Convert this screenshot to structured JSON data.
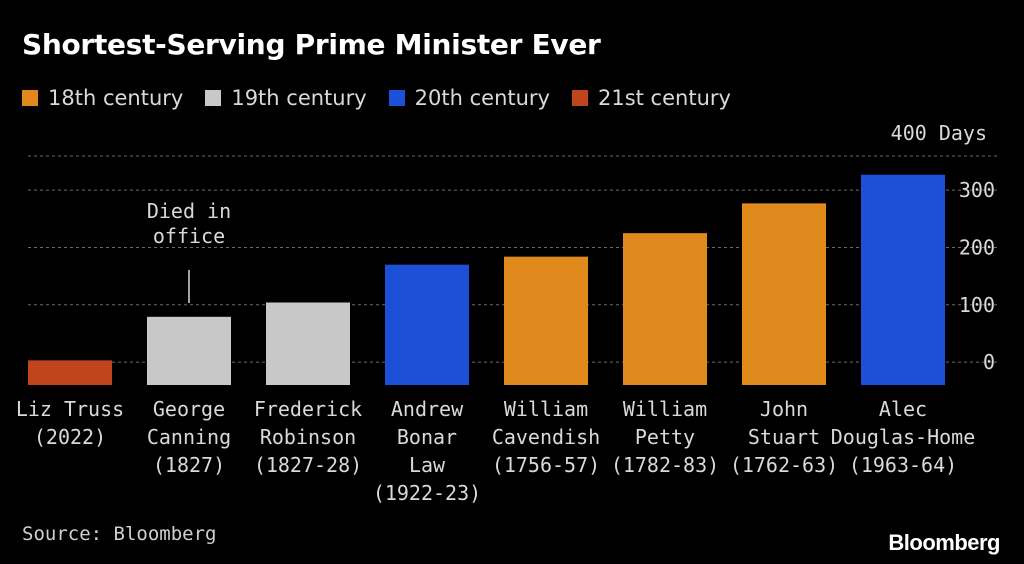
{
  "colors": {
    "background": "#000000",
    "c18": "#e08a1e",
    "c19": "#c8c8c8",
    "c20": "#1d4fd8",
    "c21": "#c0441c",
    "grid": "#6a6a6a",
    "text": "#d9d9d9"
  },
  "footer": {
    "source": "Source: Bloomberg",
    "logo": "Bloomberg"
  },
  "chart_data": {
    "type": "bar",
    "title": "Shortest-Serving Prime Minister Ever",
    "unit_label": "400 Days",
    "ylim": [
      -40,
      400
    ],
    "yticks": [
      0,
      100,
      200,
      300
    ],
    "grid": true,
    "y_axis_position": "right",
    "legend_position": "top-left",
    "legend": [
      {
        "label": "18th century",
        "color": "#e08a1e"
      },
      {
        "label": "19th century",
        "color": "#c8c8c8"
      },
      {
        "label": "20th century",
        "color": "#1d4fd8"
      },
      {
        "label": "21st century",
        "color": "#c0441c"
      }
    ],
    "categories": [
      [
        "Liz Truss",
        "(2022)"
      ],
      [
        "George",
        "Canning",
        "(1827)"
      ],
      [
        "Frederick",
        "Robinson",
        "(1827-28)"
      ],
      [
        "Andrew",
        "Bonar",
        "Law",
        "(1922-23)"
      ],
      [
        "William",
        "Cavendish",
        "(1756-57)"
      ],
      [
        "William",
        "Petty",
        "(1782-83)"
      ],
      [
        "John",
        "Stuart",
        "(1762-63)"
      ],
      [
        "Alec",
        "Douglas-Home",
        "(1963-64)"
      ]
    ],
    "values": [
      3,
      79,
      104,
      170,
      184,
      225,
      277,
      327
    ],
    "century": [
      "21st",
      "19th",
      "19th",
      "20th",
      "18th",
      "18th",
      "18th",
      "20th"
    ],
    "annotation": {
      "index": 1,
      "lines": [
        "Died in",
        "office"
      ]
    }
  }
}
